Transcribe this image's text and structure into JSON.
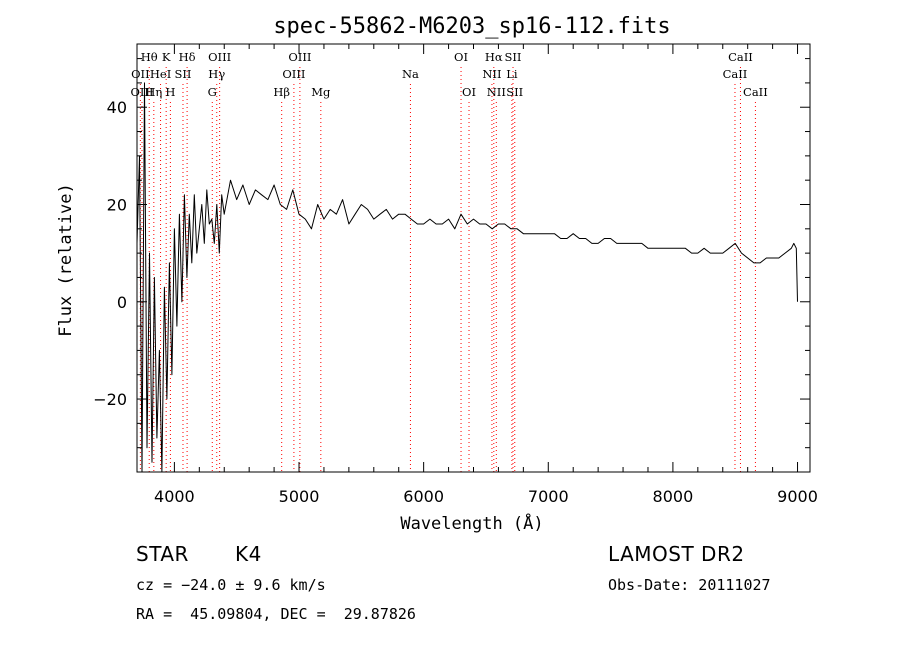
{
  "chart_data": {
    "type": "line",
    "title": "spec-55862-M6203_sp16-112.fits",
    "xlabel": "Wavelength (Å)",
    "ylabel": "Flux (relative)",
    "xlim": [
      3700,
      9100
    ],
    "ylim": [
      -35,
      53
    ],
    "xticks": [
      4000,
      5000,
      6000,
      7000,
      8000,
      9000
    ],
    "yticks": [
      -20,
      0,
      20,
      40
    ],
    "grid": false,
    "colors": {
      "spectrum": "#000000",
      "lines": "#ff0000"
    },
    "series": [
      {
        "x": [
          3700,
          3720,
          3740,
          3760,
          3780,
          3800,
          3820,
          3840,
          3860,
          3880,
          3900,
          3920,
          3940,
          3960,
          3980,
          4000,
          4020,
          4040,
          4060,
          4080,
          4100,
          4120,
          4140,
          4160,
          4180,
          4200,
          4220,
          4240,
          4260,
          4280,
          4300,
          4320,
          4340,
          4360,
          4380,
          4400,
          4450,
          4500,
          4550,
          4600,
          4650,
          4700,
          4750,
          4800,
          4850,
          4900,
          4950,
          5000,
          5050,
          5100,
          5150,
          5200,
          5250,
          5300,
          5350,
          5400,
          5450,
          5500,
          5550,
          5600,
          5650,
          5700,
          5750,
          5800,
          5850,
          5900,
          5950,
          6000,
          6050,
          6100,
          6150,
          6200,
          6250,
          6300,
          6350,
          6400,
          6450,
          6500,
          6550,
          6600,
          6650,
          6700,
          6750,
          6800,
          6850,
          6900,
          6950,
          7000,
          7050,
          7100,
          7150,
          7200,
          7250,
          7300,
          7350,
          7400,
          7450,
          7500,
          7550,
          7600,
          7650,
          7700,
          7750,
          7800,
          7850,
          7900,
          7950,
          8000,
          8050,
          8100,
          8150,
          8200,
          8250,
          8300,
          8350,
          8400,
          8450,
          8500,
          8550,
          8600,
          8650,
          8700,
          8750,
          8800,
          8850,
          8900,
          8950,
          8970,
          8990,
          9000
        ],
        "y": [
          12,
          30,
          -35,
          45,
          -30,
          10,
          -33,
          5,
          -28,
          -10,
          -35,
          3,
          -20,
          8,
          -15,
          15,
          -5,
          18,
          0,
          22,
          5,
          18,
          8,
          22,
          10,
          15,
          20,
          12,
          23,
          16,
          17,
          12,
          20,
          10,
          22,
          18,
          25,
          21,
          24,
          20,
          23,
          22,
          21,
          24,
          20,
          19,
          23,
          18,
          17,
          15,
          20,
          17,
          19,
          18,
          21,
          16,
          18,
          20,
          19,
          17,
          18,
          19,
          17,
          18,
          18,
          17,
          16,
          16,
          17,
          16,
          16,
          17,
          15,
          18,
          16,
          17,
          16,
          16,
          15,
          16,
          16,
          15,
          15,
          14,
          14,
          14,
          14,
          14,
          14,
          13,
          13,
          14,
          13,
          13,
          12,
          12,
          13,
          13,
          12,
          12,
          12,
          12,
          12,
          11,
          11,
          11,
          11,
          11,
          11,
          11,
          10,
          10,
          11,
          10,
          10,
          10,
          11,
          12,
          10,
          9,
          8,
          8,
          9,
          9,
          9,
          10,
          11,
          12,
          11,
          0
        ]
      }
    ],
    "line_markers": [
      {
        "label": "Hθ",
        "x": 3798,
        "row": 1
      },
      {
        "label": "OII",
        "x": 3727,
        "row": 2
      },
      {
        "label": "OIII",
        "x": 3740,
        "row": 3
      },
      {
        "label": "Hη",
        "x": 3835,
        "row": 3
      },
      {
        "label": "K",
        "x": 3934,
        "row": 1
      },
      {
        "label": "HeI",
        "x": 3889,
        "row": 2
      },
      {
        "label": "SII",
        "x": 4069,
        "row": 2
      },
      {
        "label": "H",
        "x": 3968,
        "row": 3
      },
      {
        "label": "Hδ",
        "x": 4102,
        "row": 1
      },
      {
        "label": "OIII",
        "x": 4363,
        "row": 1
      },
      {
        "label": "Hγ",
        "x": 4340,
        "row": 2
      },
      {
        "label": "G",
        "x": 4304,
        "row": 3
      },
      {
        "label": "Hβ",
        "x": 4861,
        "row": 3
      },
      {
        "label": "OIII",
        "x": 5007,
        "row": 1
      },
      {
        "label": "OIII",
        "x": 4959,
        "row": 2
      },
      {
        "label": "Mg",
        "x": 5175,
        "row": 3
      },
      {
        "label": "Na",
        "x": 5894,
        "row": 2
      },
      {
        "label": "OI",
        "x": 6300,
        "row": 1
      },
      {
        "label": "OI",
        "x": 6364,
        "row": 3
      },
      {
        "label": "Hα",
        "x": 6563,
        "row": 1
      },
      {
        "label": "SII",
        "x": 6717,
        "row": 1
      },
      {
        "label": "NII",
        "x": 6548,
        "row": 2
      },
      {
        "label": "Li",
        "x": 6708,
        "row": 2
      },
      {
        "label": "NII",
        "x": 6583,
        "row": 3
      },
      {
        "label": "SII",
        "x": 6731,
        "row": 3
      },
      {
        "label": "CaII",
        "x": 8542,
        "row": 1
      },
      {
        "label": "CaII",
        "x": 8498,
        "row": 2
      },
      {
        "label": "CaII",
        "x": 8662,
        "row": 3
      }
    ]
  },
  "info": {
    "object_class": "STAR",
    "subclass": "K4",
    "survey": "LAMOST DR2",
    "cz": "cz = −24.0 ± 9.6 km/s",
    "obs_date": "Obs-Date: 20111027",
    "coords": "RA =  45.09804, DEC =  29.87826"
  }
}
